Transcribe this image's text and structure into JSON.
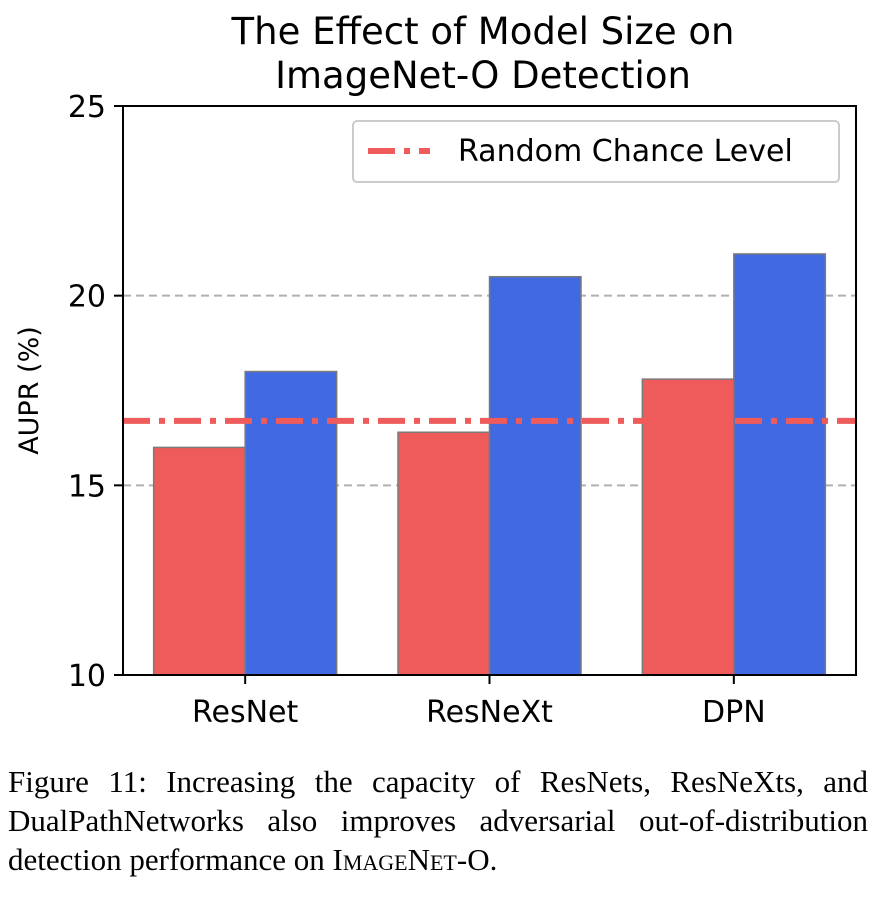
{
  "chart_data": {
    "type": "bar",
    "title": "The Effect of Model Size on\nImageNet-O Detection",
    "ylabel": "AUPR (%)",
    "xlabel": "",
    "categories": [
      "ResNet",
      "ResNeXt",
      "DPN"
    ],
    "series": [
      {
        "values": [
          16.0,
          16.4,
          17.8
        ],
        "color": "#ef5a5a"
      },
      {
        "values": [
          18.0,
          20.5,
          21.1
        ],
        "color": "#4169e1"
      }
    ],
    "ylim": [
      10,
      25
    ],
    "yticks": [
      10,
      15,
      20,
      25
    ],
    "grid": true,
    "gridlines_at": [
      15,
      20
    ],
    "reference_line": {
      "label": "Random Chance Level",
      "value": 16.7,
      "color": "#ef5a5a",
      "style": "dash-dot"
    },
    "legend_position": "top-right"
  },
  "caption": {
    "prefix": "Figure 11: Increasing the capacity of ResNets, ResNeXts, and DualPathNetworks also improves adversarial out-of-distribution detection performance on ",
    "dataset_part1": "ImageNet",
    "dataset_sep": "-",
    "dataset_part2": "O",
    "suffix": "."
  }
}
